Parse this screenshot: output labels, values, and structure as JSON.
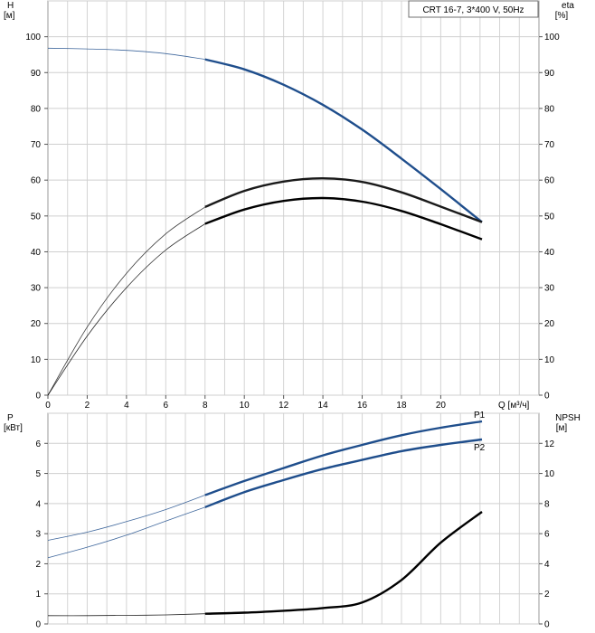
{
  "chart_data": [
    {
      "type": "line",
      "legend_box": "CRT 16-7, 3*400 V, 50Hz",
      "left_axis": {
        "symbol": "H",
        "unit": "[м]",
        "ticks": [
          0,
          10,
          20,
          30,
          40,
          50,
          60,
          70,
          80,
          90,
          100
        ],
        "range": [
          0,
          110
        ]
      },
      "right_axis": {
        "symbol": "eta",
        "unit": "[%]",
        "ticks": [
          0,
          10,
          20,
          30,
          40,
          50,
          60,
          70,
          80,
          90,
          100
        ],
        "range": [
          0,
          110
        ]
      },
      "x_axis": {
        "label": "Q [м³/ч]",
        "ticks": [
          0,
          2,
          4,
          6,
          8,
          10,
          12,
          14,
          16,
          18,
          20
        ],
        "range": [
          0,
          25
        ]
      },
      "grid": true,
      "series": [
        {
          "axis": "left",
          "color": "#1f4e8c",
          "thin_segment": [
            [
              0,
              96.8
            ],
            [
              2,
              96.6
            ],
            [
              4,
              96.2
            ],
            [
              6,
              95.3
            ],
            [
              8,
              93.7
            ]
          ],
          "thick_segment": [
            [
              8,
              93.7
            ],
            [
              10,
              90.9
            ],
            [
              12,
              86.6
            ],
            [
              14,
              81.0
            ],
            [
              16,
              74.1
            ],
            [
              18,
              66.0
            ],
            [
              20,
              57.5
            ],
            [
              22.1,
              48.3
            ]
          ]
        },
        {
          "axis": "right",
          "color": "#1a1a1a",
          "thin_segment": [
            [
              0,
              0
            ],
            [
              2,
              19.0
            ],
            [
              4,
              34.0
            ],
            [
              6,
              45.0
            ],
            [
              8,
              52.5
            ]
          ],
          "thick_segment": [
            [
              8,
              52.5
            ],
            [
              10,
              57.0
            ],
            [
              12,
              59.6
            ],
            [
              14,
              60.5
            ],
            [
              16,
              59.5
            ],
            [
              18,
              56.6
            ],
            [
              20,
              52.6
            ],
            [
              22.1,
              48.3
            ]
          ]
        },
        {
          "axis": "right",
          "color": "#000000",
          "thin_segment": [
            [
              0,
              0
            ],
            [
              2,
              16.5
            ],
            [
              4,
              30.0
            ],
            [
              6,
              40.5
            ],
            [
              8,
              47.8
            ]
          ],
          "thick_segment": [
            [
              8,
              47.8
            ],
            [
              10,
              51.8
            ],
            [
              12,
              54.2
            ],
            [
              14,
              55.0
            ],
            [
              16,
              54.0
            ],
            [
              18,
              51.4
            ],
            [
              20,
              47.7
            ],
            [
              22.1,
              43.5
            ]
          ]
        }
      ]
    },
    {
      "type": "line",
      "left_axis": {
        "symbol": "P",
        "unit": "[кВт]",
        "ticks": [
          0,
          1,
          2,
          3,
          4,
          5,
          6
        ],
        "range": [
          0,
          7
        ]
      },
      "right_axis": {
        "symbol": "NPSH",
        "unit": "[м]",
        "ticks": [
          0,
          2,
          4,
          6,
          8,
          10,
          12
        ],
        "range": [
          0,
          14
        ]
      },
      "x_axis": {
        "range": [
          0,
          25
        ]
      },
      "grid": true,
      "series": [
        {
          "name": "P1",
          "axis": "left",
          "color": "#1f4e8c",
          "thin_segment": [
            [
              0,
              2.78
            ],
            [
              2,
              3.05
            ],
            [
              4,
              3.4
            ],
            [
              6,
              3.8
            ],
            [
              8,
              4.28
            ]
          ],
          "thick_segment": [
            [
              8,
              4.28
            ],
            [
              10,
              4.75
            ],
            [
              12,
              5.18
            ],
            [
              14,
              5.6
            ],
            [
              16,
              5.95
            ],
            [
              18,
              6.27
            ],
            [
              20,
              6.52
            ],
            [
              22.1,
              6.73
            ]
          ]
        },
        {
          "name": "P2",
          "axis": "left",
          "color": "#1f4e8c",
          "thin_segment": [
            [
              0,
              2.2
            ],
            [
              2,
              2.55
            ],
            [
              4,
              2.95
            ],
            [
              6,
              3.42
            ],
            [
              8,
              3.88
            ]
          ],
          "thick_segment": [
            [
              8,
              3.88
            ],
            [
              10,
              4.38
            ],
            [
              12,
              4.78
            ],
            [
              14,
              5.15
            ],
            [
              16,
              5.45
            ],
            [
              18,
              5.74
            ],
            [
              20,
              5.95
            ],
            [
              22.1,
              6.13
            ]
          ]
        },
        {
          "axis": "right",
          "color": "#000000",
          "thin_segment": [
            [
              0,
              0.55
            ],
            [
              2,
              0.55
            ],
            [
              4,
              0.57
            ],
            [
              6,
              0.6
            ],
            [
              8,
              0.68
            ]
          ],
          "thick_segment": [
            [
              8,
              0.68
            ],
            [
              10,
              0.75
            ],
            [
              12,
              0.88
            ],
            [
              14,
              1.06
            ],
            [
              16,
              1.43
            ],
            [
              18,
              2.92
            ],
            [
              20,
              5.4
            ],
            [
              22.1,
              7.45
            ]
          ]
        }
      ]
    }
  ]
}
